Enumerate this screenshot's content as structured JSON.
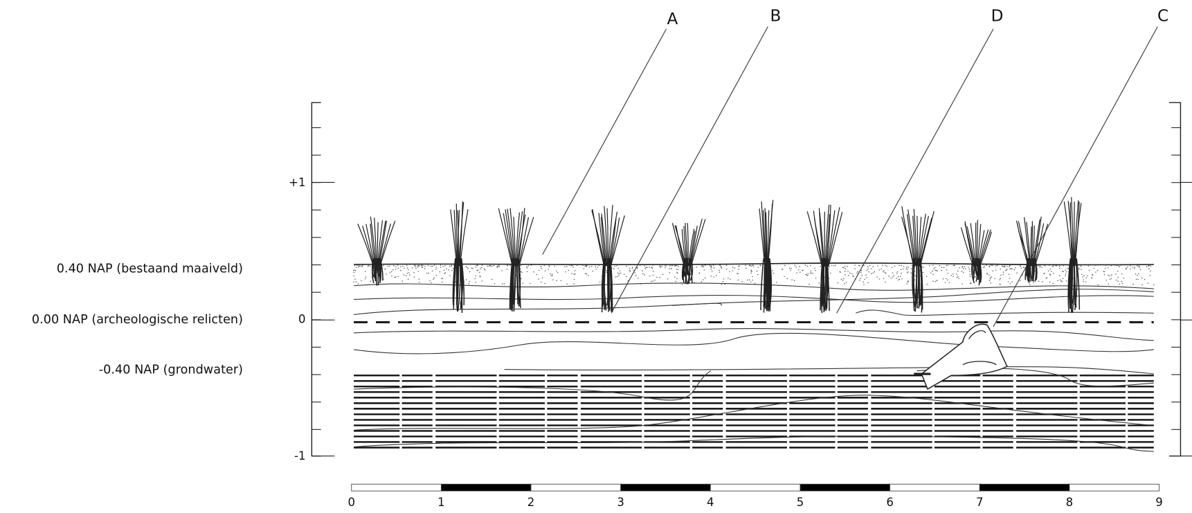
{
  "labels": {
    "a": "A",
    "b": "B",
    "c": "C",
    "d": "D"
  },
  "levels": [
    "0.40 NAP (bestaand maaiveld)",
    "0.00 NAP (archeologische relicten)",
    "-0.40 NAP (grondwater)"
  ],
  "axis": [
    "+1",
    "0",
    "-1"
  ],
  "scale": [
    "0",
    "1",
    "2",
    "3",
    "4",
    "5",
    "6",
    "7",
    "8",
    "9"
  ]
}
